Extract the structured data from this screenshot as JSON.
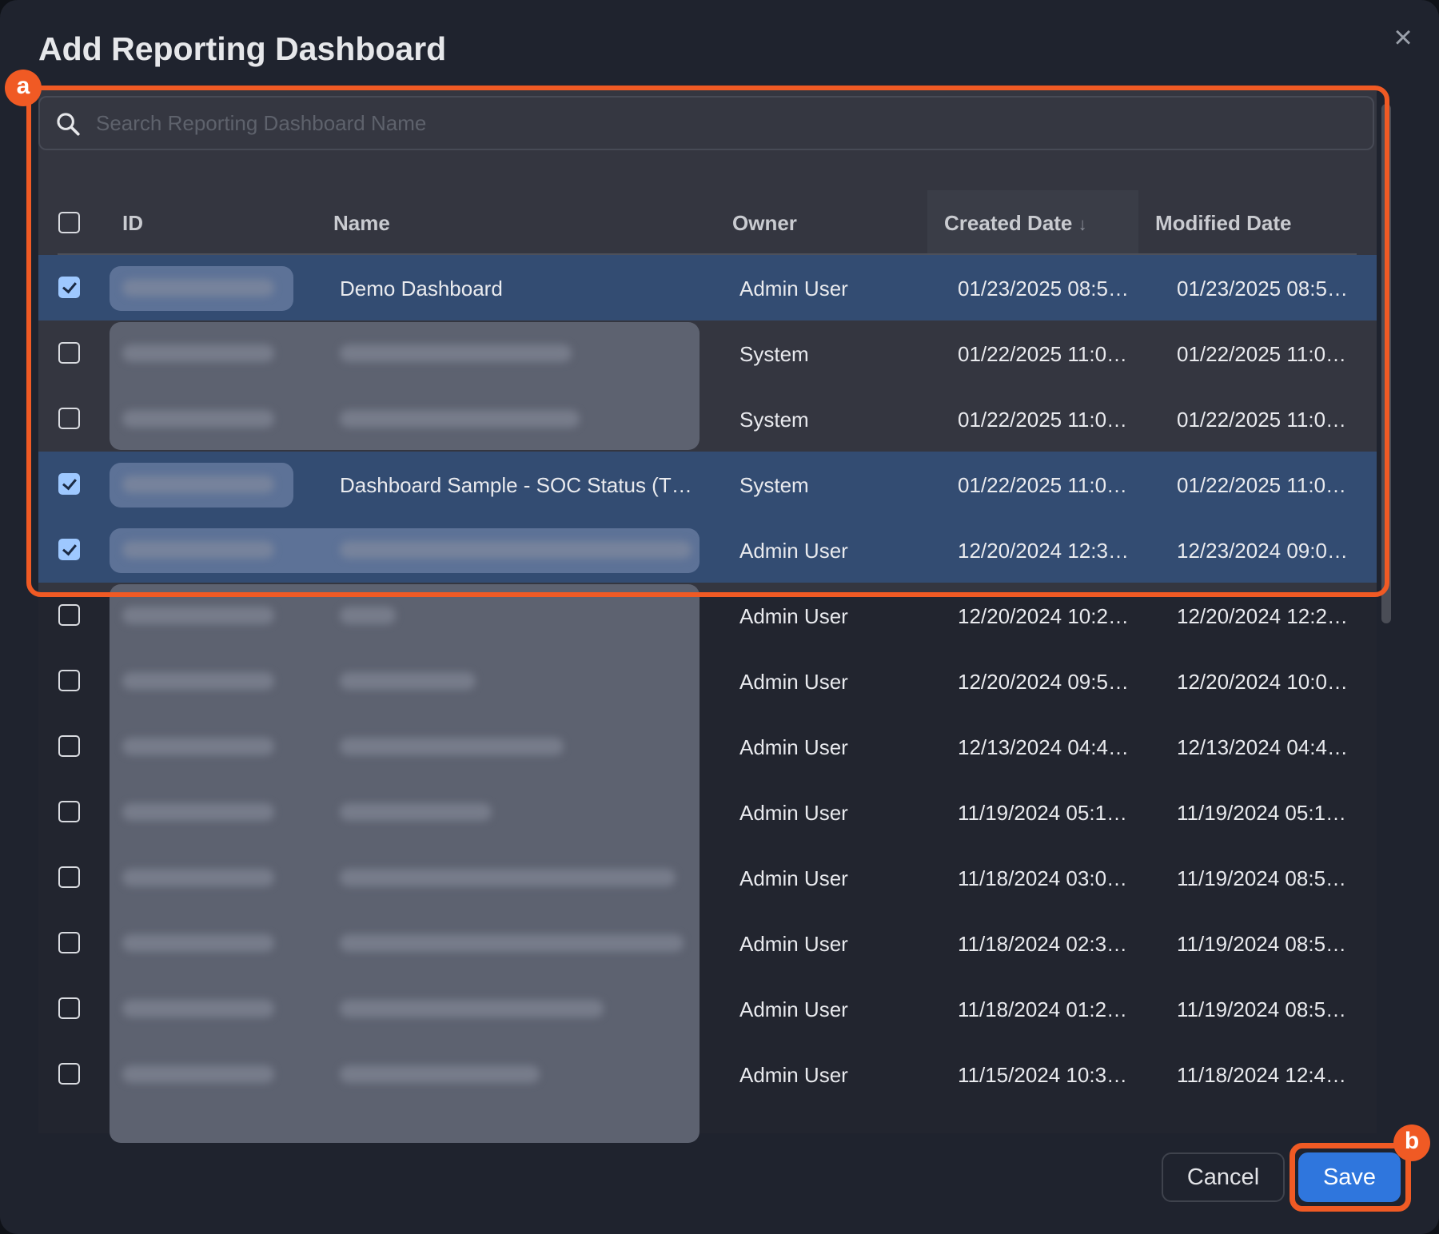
{
  "dialog": {
    "title": "Add Reporting Dashboard",
    "close_icon": "close-icon"
  },
  "search": {
    "placeholder": "Search Reporting Dashboard Name",
    "value": ""
  },
  "table": {
    "columns": [
      "ID",
      "Name",
      "Owner",
      "Created Date",
      "Modified Date"
    ],
    "sort": {
      "column": "Created Date",
      "indicator": "↓"
    },
    "rows": [
      {
        "selected": true,
        "name": "Demo Dashboard",
        "owner": "Admin User",
        "created": "01/23/2025 08:5…",
        "modified": "01/23/2025 08:5…"
      },
      {
        "selected": false,
        "name": "",
        "owner": "System",
        "created": "01/22/2025 11:0…",
        "modified": "01/22/2025 11:0…"
      },
      {
        "selected": false,
        "name": "",
        "owner": "System",
        "created": "01/22/2025 11:0…",
        "modified": "01/22/2025 11:0…"
      },
      {
        "selected": true,
        "name": "Dashboard Sample - SOC Status (T…",
        "owner": "System",
        "created": "01/22/2025 11:0…",
        "modified": "01/22/2025 11:0…"
      },
      {
        "selected": true,
        "name": "",
        "owner": "Admin User",
        "created": "12/20/2024 12:3…",
        "modified": "12/23/2024 09:0…"
      },
      {
        "selected": false,
        "name": "",
        "owner": "Admin User",
        "created": "12/20/2024 10:2…",
        "modified": "12/20/2024 12:2…"
      },
      {
        "selected": false,
        "name": "",
        "owner": "Admin User",
        "created": "12/20/2024 09:5…",
        "modified": "12/20/2024 10:0…"
      },
      {
        "selected": false,
        "name": "",
        "owner": "Admin User",
        "created": "12/13/2024 04:4…",
        "modified": "12/13/2024 04:4…"
      },
      {
        "selected": false,
        "name": "",
        "owner": "Admin User",
        "created": "11/19/2024 05:1…",
        "modified": "11/19/2024 05:1…"
      },
      {
        "selected": false,
        "name": "",
        "owner": "Admin User",
        "created": "11/18/2024 03:0…",
        "modified": "11/19/2024 08:5…"
      },
      {
        "selected": false,
        "name": "",
        "owner": "Admin User",
        "created": "11/18/2024 02:3…",
        "modified": "11/19/2024 08:5…"
      },
      {
        "selected": false,
        "name": "",
        "owner": "Admin User",
        "created": "11/18/2024 01:2…",
        "modified": "11/19/2024 08:5…"
      },
      {
        "selected": false,
        "name": "",
        "owner": "Admin User",
        "created": "11/15/2024 10:3…",
        "modified": "11/18/2024 12:4…"
      }
    ]
  },
  "footer": {
    "cancel_label": "Cancel",
    "save_label": "Save"
  },
  "annotations": {
    "a": "a",
    "b": "b"
  },
  "colors": {
    "accent": "#2f76dd",
    "selected_row": "#334c72",
    "annotation": "#f05a24"
  }
}
